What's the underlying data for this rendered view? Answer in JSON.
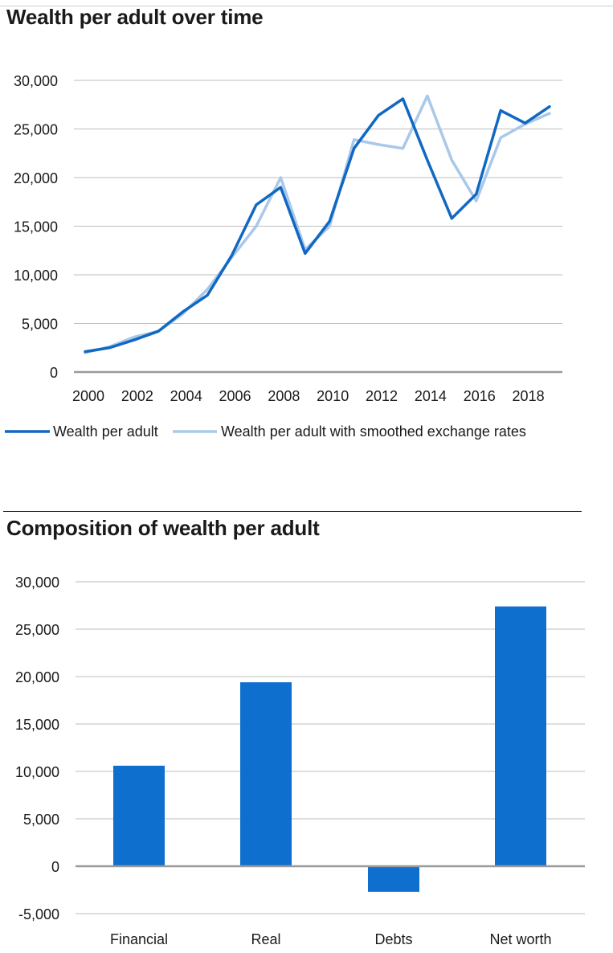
{
  "charts": {
    "line_title": "Wealth per adult over time",
    "bar_title": "Composition of wealth per adult"
  },
  "colors": {
    "series_dark": "#1168c2",
    "series_light": "#a9c8ea",
    "bar": "#0f6fcf",
    "grid": "#bdbdbd",
    "axis": "#9a9a9a"
  },
  "chart_data": [
    {
      "type": "line",
      "title": "Wealth per adult over time",
      "xlabel": "",
      "ylabel": "",
      "x": [
        2000,
        2001,
        2002,
        2003,
        2004,
        2005,
        2006,
        2007,
        2008,
        2009,
        2010,
        2011,
        2012,
        2013,
        2014,
        2015,
        2016,
        2017,
        2018,
        2019
      ],
      "x_tick_labels": [
        "2000",
        "2002",
        "2004",
        "2006",
        "2008",
        "2010",
        "2012",
        "2014",
        "2016",
        "2018"
      ],
      "y_tick_labels": [
        "0",
        "5,000",
        "10,000",
        "15,000",
        "20,000",
        "25,000",
        "30,000"
      ],
      "ylim": [
        0,
        30000
      ],
      "grid": true,
      "legend_position": "bottom",
      "series": [
        {
          "name": "Wealth per adult",
          "color": "#1168c2",
          "values": [
            2100,
            2500,
            3300,
            4200,
            6200,
            7900,
            12000,
            17200,
            19000,
            12200,
            15500,
            23000,
            26400,
            28100,
            21800,
            15800,
            18300,
            26900,
            25600,
            27300
          ]
        },
        {
          "name": "Wealth per adult with smoothed exchange rates",
          "color": "#a9c8ea",
          "values": [
            2000,
            2600,
            3600,
            4200,
            6000,
            8500,
            11800,
            15000,
            20000,
            12600,
            15000,
            23900,
            23400,
            23000,
            28400,
            21800,
            17600,
            24100,
            25500,
            26600
          ]
        }
      ]
    },
    {
      "type": "bar",
      "title": "Composition of wealth per adult",
      "xlabel": "",
      "ylabel": "",
      "categories": [
        "Financial",
        "Real",
        "Debts",
        "Net worth"
      ],
      "values": [
        10600,
        19400,
        -2700,
        27400
      ],
      "y_tick_labels": [
        "-5,000",
        "0",
        "5,000",
        "10,000",
        "15,000",
        "20,000",
        "25,000",
        "30,000"
      ],
      "ylim": [
        -5000,
        30000
      ],
      "grid": true
    }
  ]
}
